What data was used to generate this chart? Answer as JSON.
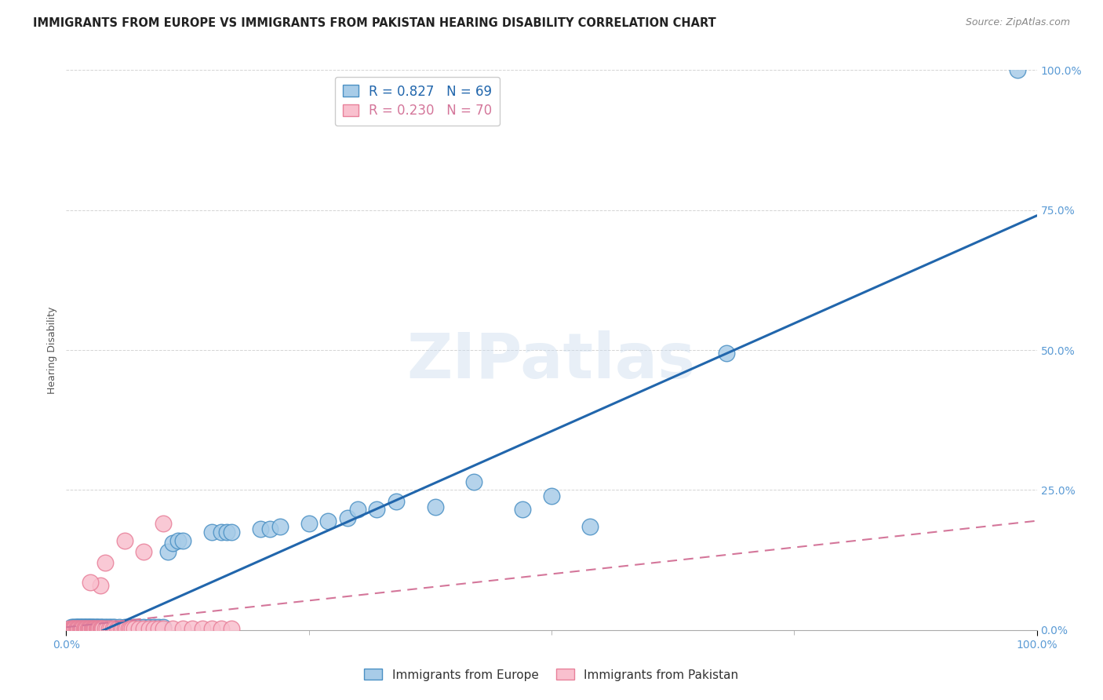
{
  "title": "IMMIGRANTS FROM EUROPE VS IMMIGRANTS FROM PAKISTAN HEARING DISABILITY CORRELATION CHART",
  "source": "Source: ZipAtlas.com",
  "ylabel": "Hearing Disability",
  "xlim": [
    0,
    1.0
  ],
  "ylim": [
    0,
    1.0
  ],
  "xtick_labels": [
    "0.0%",
    "100.0%"
  ],
  "ytick_positions": [
    0.0,
    0.25,
    0.5,
    0.75,
    1.0
  ],
  "legend_europe_R": "0.827",
  "legend_europe_N": "69",
  "legend_pakistan_R": "0.230",
  "legend_pakistan_N": "70",
  "europe_color": "#a8cce8",
  "pakistan_color": "#f9c0ce",
  "europe_edge_color": "#4a90c4",
  "pakistan_edge_color": "#e8809a",
  "europe_line_color": "#2166ac",
  "pakistan_line_color": "#d4769a",
  "title_fontsize": 10.5,
  "source_fontsize": 9,
  "axis_label_fontsize": 9,
  "tick_color": "#5b9bd5",
  "background_color": "#ffffff",
  "grid_color": "#d0d0d0",
  "europe_line_slope": 0.77,
  "europe_line_intercept": -0.03,
  "pakistan_line_slope": 0.19,
  "pakistan_line_intercept": 0.005,
  "europe_scatter_x": [
    0.005,
    0.007,
    0.009,
    0.01,
    0.011,
    0.012,
    0.013,
    0.014,
    0.015,
    0.016,
    0.017,
    0.018,
    0.019,
    0.02,
    0.021,
    0.022,
    0.023,
    0.024,
    0.025,
    0.026,
    0.027,
    0.028,
    0.03,
    0.031,
    0.032,
    0.033,
    0.035,
    0.036,
    0.038,
    0.04,
    0.042,
    0.044,
    0.046,
    0.048,
    0.05,
    0.055,
    0.06,
    0.065,
    0.07,
    0.075,
    0.08,
    0.085,
    0.09,
    0.095,
    0.1,
    0.105,
    0.11,
    0.115,
    0.12,
    0.15,
    0.16,
    0.165,
    0.17,
    0.2,
    0.21,
    0.22,
    0.25,
    0.27,
    0.29,
    0.3,
    0.32,
    0.34,
    0.38,
    0.42,
    0.47,
    0.5,
    0.54,
    0.68,
    0.98
  ],
  "europe_scatter_y": [
    0.005,
    0.005,
    0.005,
    0.005,
    0.005,
    0.005,
    0.005,
    0.005,
    0.005,
    0.005,
    0.005,
    0.005,
    0.005,
    0.005,
    0.005,
    0.005,
    0.005,
    0.005,
    0.005,
    0.005,
    0.005,
    0.005,
    0.005,
    0.005,
    0.005,
    0.005,
    0.005,
    0.005,
    0.005,
    0.005,
    0.005,
    0.005,
    0.005,
    0.005,
    0.005,
    0.005,
    0.005,
    0.005,
    0.005,
    0.005,
    0.005,
    0.005,
    0.005,
    0.005,
    0.005,
    0.14,
    0.155,
    0.16,
    0.16,
    0.175,
    0.175,
    0.175,
    0.175,
    0.18,
    0.18,
    0.185,
    0.19,
    0.195,
    0.2,
    0.215,
    0.215,
    0.23,
    0.22,
    0.265,
    0.215,
    0.24,
    0.185,
    0.495,
    1.0
  ],
  "pakistan_scatter_x": [
    0.003,
    0.005,
    0.006,
    0.007,
    0.008,
    0.009,
    0.01,
    0.011,
    0.012,
    0.013,
    0.014,
    0.015,
    0.016,
    0.017,
    0.018,
    0.019,
    0.02,
    0.021,
    0.022,
    0.023,
    0.024,
    0.025,
    0.026,
    0.027,
    0.028,
    0.029,
    0.03,
    0.031,
    0.032,
    0.033,
    0.034,
    0.035,
    0.036,
    0.037,
    0.038,
    0.04,
    0.042,
    0.044,
    0.046,
    0.048,
    0.05,
    0.052,
    0.054,
    0.056,
    0.058,
    0.06,
    0.062,
    0.064,
    0.066,
    0.068,
    0.07,
    0.075,
    0.08,
    0.085,
    0.09,
    0.095,
    0.1,
    0.11,
    0.12,
    0.13,
    0.14,
    0.15,
    0.16,
    0.17,
    0.06,
    0.08,
    0.1,
    0.04,
    0.035,
    0.025
  ],
  "pakistan_scatter_y": [
    0.003,
    0.003,
    0.003,
    0.003,
    0.003,
    0.003,
    0.003,
    0.003,
    0.003,
    0.003,
    0.003,
    0.003,
    0.003,
    0.003,
    0.003,
    0.003,
    0.003,
    0.003,
    0.003,
    0.003,
    0.003,
    0.003,
    0.003,
    0.003,
    0.003,
    0.003,
    0.003,
    0.003,
    0.003,
    0.003,
    0.003,
    0.003,
    0.003,
    0.003,
    0.003,
    0.003,
    0.003,
    0.003,
    0.003,
    0.003,
    0.003,
    0.003,
    0.003,
    0.003,
    0.003,
    0.003,
    0.003,
    0.003,
    0.003,
    0.003,
    0.003,
    0.003,
    0.003,
    0.003,
    0.003,
    0.003,
    0.003,
    0.003,
    0.003,
    0.003,
    0.003,
    0.003,
    0.003,
    0.003,
    0.16,
    0.14,
    0.19,
    0.12,
    0.08,
    0.085
  ]
}
